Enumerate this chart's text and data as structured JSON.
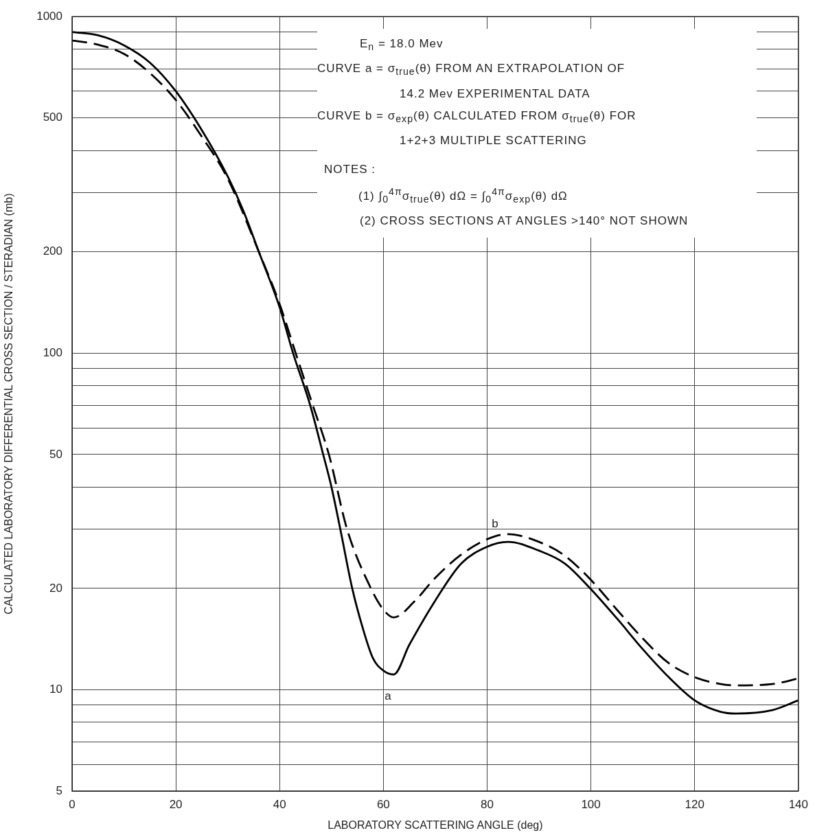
{
  "chart_data": {
    "type": "line",
    "xlabel": "LABORATORY SCATTERING ANGLE (deg)",
    "ylabel": "CALCULATED LABORATORY DIFFERENTIAL CROSS SECTION / STERADIAN (mb)",
    "xlim": [
      0,
      140
    ],
    "xticks": [
      0,
      20,
      40,
      60,
      80,
      100,
      120,
      140
    ],
    "ylim": [
      5,
      1000
    ],
    "yticks": [
      5,
      {
        "value": 6,
        "label": null
      },
      {
        "value": 7,
        "label": null
      },
      {
        "value": 8,
        "label": null
      },
      {
        "value": 9,
        "label": null
      },
      10,
      20,
      {
        "value": 30,
        "label": null
      },
      {
        "value": 40,
        "label": null
      },
      50,
      {
        "value": 60,
        "label": null
      },
      {
        "value": 70,
        "label": null
      },
      {
        "value": 80,
        "label": null
      },
      {
        "value": 90,
        "label": null
      },
      100,
      200,
      {
        "value": 300,
        "label": null
      },
      {
        "value": 400,
        "label": null
      },
      500,
      {
        "value": 600,
        "label": null
      },
      {
        "value": 700,
        "label": null
      },
      {
        "value": 800,
        "label": null
      },
      {
        "value": 900,
        "label": null
      },
      1000
    ],
    "log": "y",
    "grid": true,
    "legend": false,
    "marker": "none",
    "series": [
      {
        "color": "#000000",
        "line_style": "solid",
        "x": [
          0,
          5,
          10,
          15,
          20,
          25,
          30,
          33,
          36,
          40,
          42.6,
          45.9,
          48.4,
          50,
          51.7,
          54,
          56,
          58,
          60,
          62,
          65,
          70,
          75,
          80,
          84,
          90,
          95,
          100,
          105,
          110,
          115,
          120,
          125,
          128,
          135,
          140
        ],
        "values": [
          900,
          880,
          822,
          730,
          600,
          460,
          335,
          265,
          200,
          137,
          100,
          70,
          50,
          40,
          30,
          20,
          15.3,
          12.4,
          11.4,
          11.1,
          13.6,
          18.4,
          23.7,
          26.6,
          27.5,
          25.9,
          23.7,
          19.9,
          16.3,
          13.2,
          10.9,
          9.3,
          8.6,
          8.5,
          8.7,
          9.3
        ]
      },
      {
        "color": "#000000",
        "line_style": "dashed",
        "x": [
          0,
          5,
          10,
          15,
          20,
          25,
          30,
          36,
          40,
          43.1,
          46.4,
          49.5,
          53,
          57.6,
          60,
          62,
          66,
          70,
          75,
          80,
          84,
          90,
          95,
          100,
          105,
          110,
          115,
          120,
          125,
          128,
          135,
          140
        ],
        "values": [
          850,
          825,
          775,
          680,
          565,
          440,
          330,
          200,
          140,
          100,
          70,
          50,
          30,
          20,
          17.3,
          16.4,
          18.3,
          21.5,
          25.2,
          28,
          29,
          27.5,
          25,
          21.2,
          17.3,
          14.2,
          12,
          10.9,
          10.4,
          10.3,
          10.4,
          10.8
        ]
      }
    ],
    "annotations": [
      "E$_{n}$ = 18.0 Mev",
      "CURVE a = σ$_{true}$(θ)  FROM AN EXTRAPOLATION OF",
      "14.2 Mev EXPERIMENTAL DATA",
      "CURVE b = σ$_{exp}$(θ) CALCULATED FROM σ$_{true}$(θ) FOR",
      "1+2+3 MULTIPLE SCATTERING",
      "NOTES :",
      "(1) ∫$_{0}$$^{4π}$σ$_{true}$(θ) dΩ = ∫$_{0}$$^{4π}$σ$_{exp}$(θ) dΩ",
      "(2) CROSS SECTIONS AT ANGLES >140° NOT SHOWN",
      "a",
      "b"
    ]
  }
}
